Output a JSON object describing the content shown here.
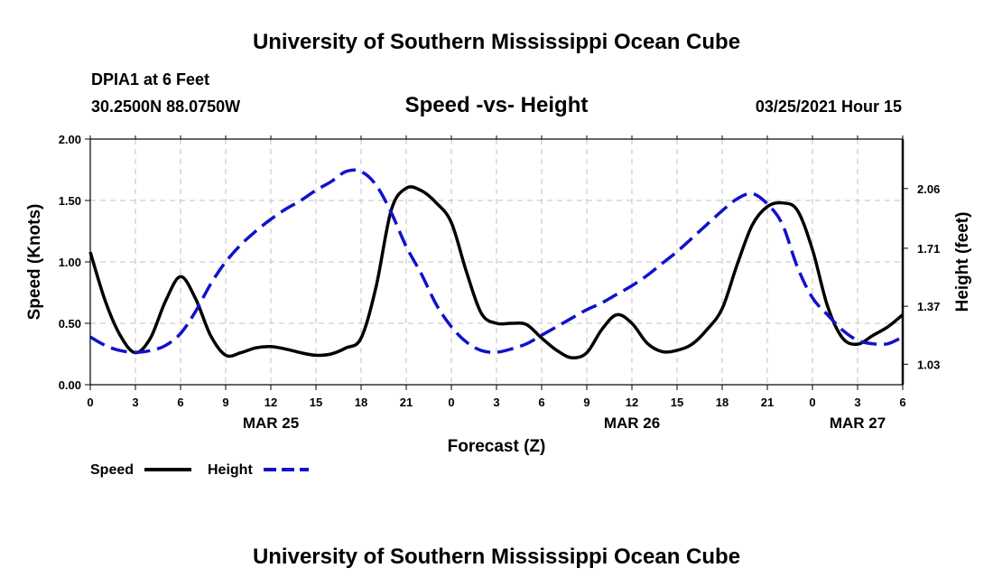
{
  "header": {
    "title_top": "University of Southern Mississippi Ocean Cube",
    "station": "DPIA1 at 6 Feet",
    "coords": "30.2500N 88.0750W",
    "datetime": "03/25/2021 Hour 15"
  },
  "footer": {
    "title_bottom": "University of Southern Mississippi Ocean Cube"
  },
  "colors": {
    "speed": "#000000",
    "height": "#1111cc",
    "grid": "#c0c0c0"
  },
  "chart_data": {
    "type": "line",
    "title": "Speed -vs- Height",
    "xlabel": "Forecast (Z)",
    "ylabel": "Speed (Knots)",
    "y2label": "Height (feet)",
    "x_range": [
      0,
      54
    ],
    "x_ticks": [
      0,
      3,
      6,
      9,
      12,
      15,
      18,
      21,
      24,
      27,
      30,
      33,
      36,
      39,
      42,
      45,
      48,
      51,
      54
    ],
    "x_tick_labels": [
      "0",
      "3",
      "6",
      "9",
      "12",
      "15",
      "18",
      "21",
      "0",
      "3",
      "6",
      "9",
      "12",
      "15",
      "18",
      "21",
      "0",
      "3",
      "6"
    ],
    "date_labels": [
      {
        "x": 12,
        "label": "MAR 25"
      },
      {
        "x": 36,
        "label": "MAR 26"
      },
      {
        "x": 51,
        "label": "MAR 27"
      }
    ],
    "ylim": [
      0,
      2.0
    ],
    "y_ticks": [
      0,
      0.5,
      1.0,
      1.5,
      2.0
    ],
    "y_tick_labels": [
      "0.00",
      "0.50",
      "1.00",
      "1.50",
      "2.00"
    ],
    "y2lim": [
      0.91,
      2.35
    ],
    "y2_ticks": [
      1.03,
      1.37,
      1.71,
      2.06
    ],
    "y2_tick_labels": [
      "1.03",
      "1.37",
      "1.71",
      "2.06"
    ],
    "grid": true,
    "legend_position": "bottom-left",
    "series": [
      {
        "name": "Speed",
        "axis": "left",
        "style": "solid",
        "x": [
          0,
          1,
          2,
          3,
          4,
          5,
          6,
          7,
          8,
          9,
          10,
          11,
          12,
          13,
          14,
          15,
          16,
          17,
          18,
          19,
          20,
          21,
          22,
          23,
          24,
          25,
          26,
          27,
          28,
          29,
          30,
          31,
          32,
          33,
          34,
          35,
          36,
          37,
          38,
          39,
          40,
          41,
          42,
          43,
          44,
          45,
          46,
          47,
          48,
          49,
          50,
          51,
          52,
          53,
          54
        ],
        "values": [
          1.08,
          0.68,
          0.4,
          0.26,
          0.38,
          0.68,
          0.88,
          0.7,
          0.4,
          0.24,
          0.26,
          0.3,
          0.31,
          0.29,
          0.26,
          0.24,
          0.25,
          0.3,
          0.38,
          0.8,
          1.42,
          1.6,
          1.58,
          1.48,
          1.32,
          0.92,
          0.58,
          0.5,
          0.5,
          0.49,
          0.38,
          0.28,
          0.22,
          0.26,
          0.45,
          0.57,
          0.5,
          0.34,
          0.27,
          0.28,
          0.33,
          0.45,
          0.62,
          0.98,
          1.3,
          1.45,
          1.48,
          1.42,
          1.1,
          0.64,
          0.38,
          0.33,
          0.4,
          0.47,
          0.57
        ]
      },
      {
        "name": "Height",
        "axis": "right",
        "style": "dashed",
        "x": [
          0,
          1,
          2,
          3,
          4,
          5,
          6,
          7,
          8,
          9,
          10,
          11,
          12,
          13,
          14,
          15,
          16,
          17,
          18,
          19,
          20,
          21,
          22,
          23,
          24,
          25,
          26,
          27,
          28,
          29,
          30,
          31,
          32,
          33,
          34,
          35,
          36,
          37,
          38,
          39,
          40,
          41,
          42,
          43,
          44,
          45,
          46,
          47,
          48,
          49,
          50,
          51,
          52,
          53,
          54
        ],
        "values": [
          1.19,
          1.14,
          1.11,
          1.1,
          1.11,
          1.14,
          1.21,
          1.34,
          1.5,
          1.63,
          1.73,
          1.81,
          1.88,
          1.94,
          1.99,
          2.05,
          2.1,
          2.16,
          2.16,
          2.08,
          1.92,
          1.72,
          1.56,
          1.38,
          1.25,
          1.16,
          1.11,
          1.1,
          1.12,
          1.15,
          1.2,
          1.25,
          1.3,
          1.35,
          1.39,
          1.44,
          1.49,
          1.55,
          1.62,
          1.69,
          1.77,
          1.85,
          1.93,
          2.0,
          2.03,
          1.97,
          1.85,
          1.6,
          1.42,
          1.32,
          1.23,
          1.17,
          1.15,
          1.15,
          1.19
        ]
      }
    ]
  }
}
